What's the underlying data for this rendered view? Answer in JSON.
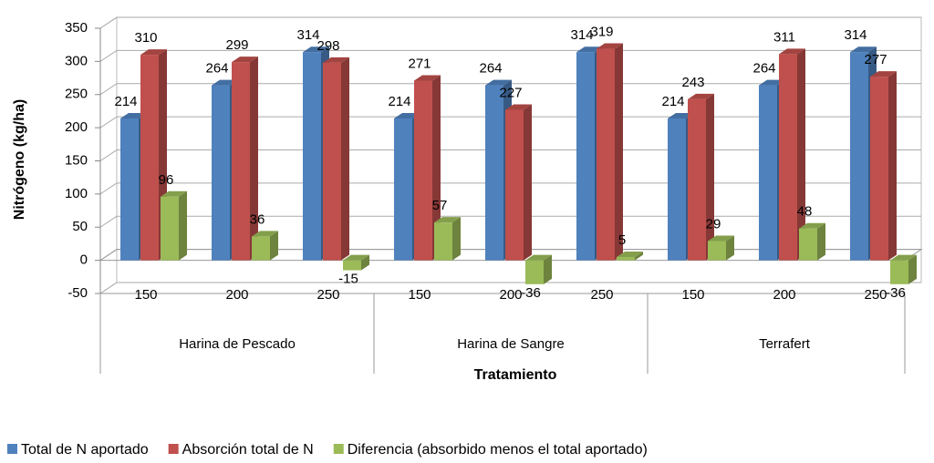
{
  "chart_data": {
    "type": "bar3d",
    "y_label": "Nitrógeno (kg/ha)",
    "x_label": "Tratamiento",
    "categories": [
      "150",
      "200",
      "250",
      "150",
      "200",
      "250",
      "150",
      "200",
      "250"
    ],
    "groups": [
      "Harina de Pescado",
      "Harina de Sangre",
      "Terrafert"
    ],
    "series": [
      {
        "name": "Total de N aportado",
        "color": "#4f81bd",
        "values": [
          214,
          264,
          314,
          214,
          264,
          314,
          214,
          264,
          314
        ]
      },
      {
        "name": "Absorción total de N",
        "color": "#c0504d",
        "values": [
          310,
          299,
          298,
          271,
          227,
          319,
          243,
          311,
          277
        ]
      },
      {
        "name": "Diferencia (absorbido menos el total aportado)",
        "color": "#9bbb59",
        "values": [
          96,
          36,
          -15,
          57,
          -36,
          5,
          29,
          48,
          -36
        ]
      }
    ],
    "ylim": [
      -50,
      350
    ],
    "yticks": [
      -50,
      0,
      50,
      100,
      150,
      200,
      250,
      300,
      350
    ],
    "grid": true,
    "legend": "bottom"
  }
}
